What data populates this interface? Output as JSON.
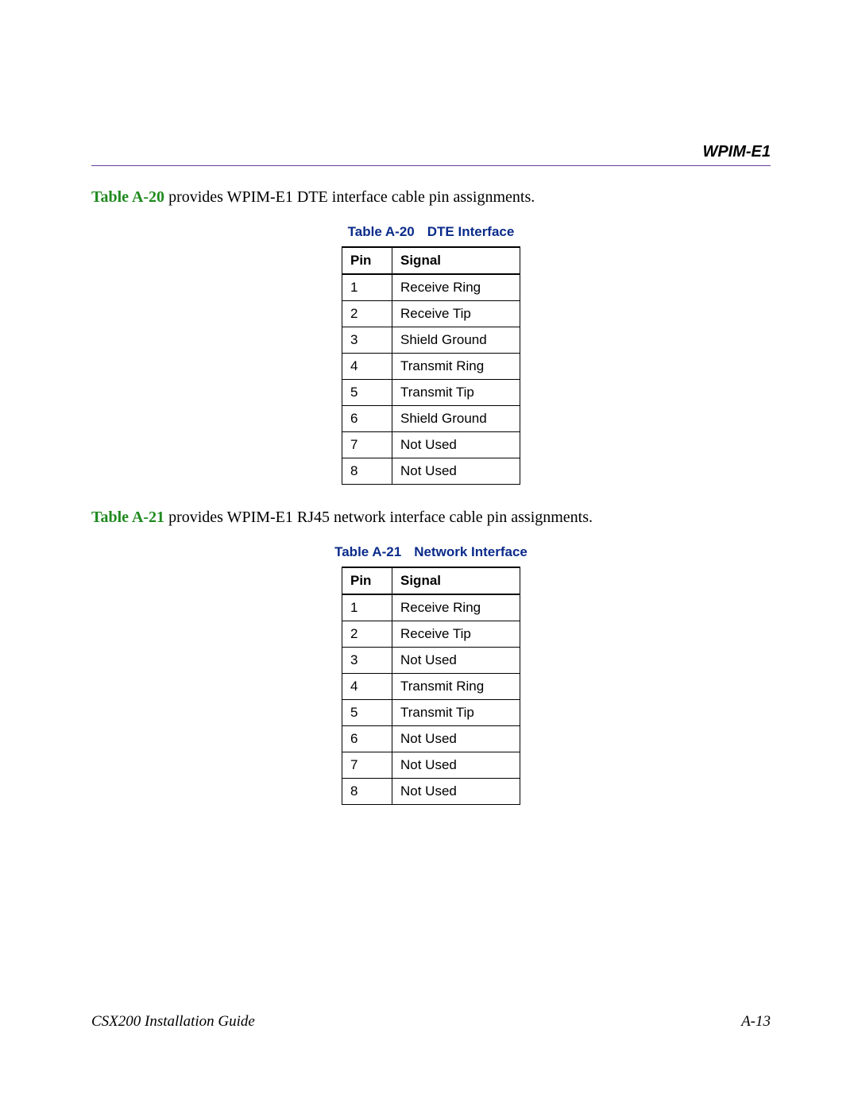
{
  "header": {
    "section_title": "WPIM-E1"
  },
  "intro1": {
    "ref": "Table A-20",
    "rest": " provides WPIM-E1 DTE interface cable pin assignments."
  },
  "table1": {
    "caption_ref": "Table A-20",
    "caption_title": "DTE Interface",
    "columns": [
      "Pin",
      "Signal"
    ],
    "rows": [
      [
        "1",
        "Receive Ring"
      ],
      [
        "2",
        "Receive Tip"
      ],
      [
        "3",
        "Shield Ground"
      ],
      [
        "4",
        "Transmit Ring"
      ],
      [
        "5",
        "Transmit Tip"
      ],
      [
        "6",
        "Shield Ground"
      ],
      [
        "7",
        "Not Used"
      ],
      [
        "8",
        "Not Used"
      ]
    ]
  },
  "intro2": {
    "ref": "Table A-21",
    "rest": " provides WPIM-E1 RJ45 network interface cable pin assignments."
  },
  "table2": {
    "caption_ref": "Table A-21",
    "caption_title": "Network Interface",
    "columns": [
      "Pin",
      "Signal"
    ],
    "rows": [
      [
        "1",
        "Receive Ring"
      ],
      [
        "2",
        "Receive Tip"
      ],
      [
        "3",
        "Not Used"
      ],
      [
        "4",
        "Transmit Ring"
      ],
      [
        "5",
        "Transmit Tip"
      ],
      [
        "6",
        "Not Used"
      ],
      [
        "7",
        "Not Used"
      ],
      [
        "8",
        "Not Used"
      ]
    ]
  },
  "footer": {
    "left": "CSX200 Installation Guide",
    "right": "A-13"
  }
}
